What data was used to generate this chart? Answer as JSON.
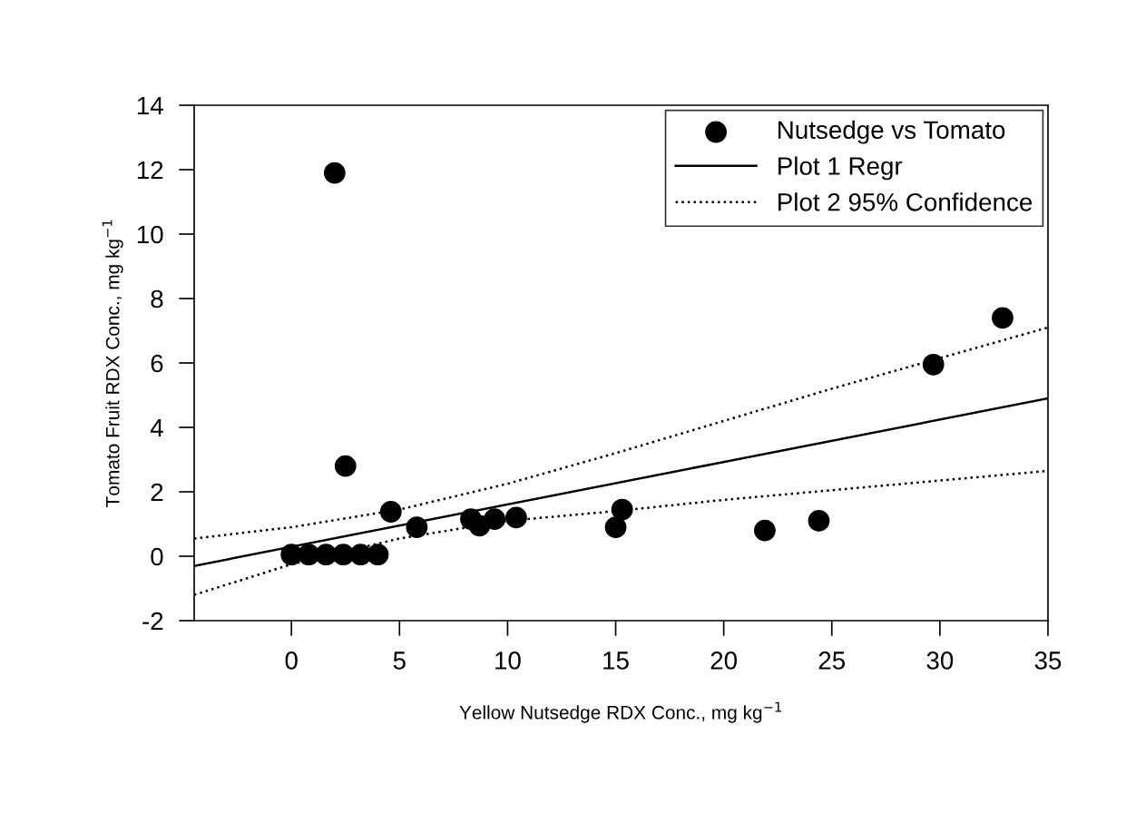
{
  "chart_data": {
    "type": "scatter",
    "xlabel": "Yellow Nutsedge RDX Conc., mg kg$^{−1}$",
    "ylabel": "Tomato Fruit RDX Conc., mg kg$^{−1}$",
    "xlim": [
      -4.5,
      35
    ],
    "xticks": [
      0,
      5,
      10,
      15,
      20,
      25,
      30,
      35
    ],
    "ylim": [
      -2,
      14
    ],
    "yticks": [
      -2,
      0,
      2,
      4,
      6,
      8,
      10,
      12,
      14
    ],
    "grid": false,
    "legend": "top right",
    "series": [
      {
        "name": "Nutsedge vs Tomato",
        "color": "#000000",
        "marker": "circle",
        "x": [
          0,
          0.8,
          1.6,
          2.4,
          3.2,
          4.0,
          2.0,
          2.5,
          4.6,
          5.8,
          8.3,
          8.7,
          9.4,
          10.4,
          15.0,
          15.3,
          21.9,
          24.4,
          29.7,
          32.9
        ],
        "values": [
          0.05,
          0.05,
          0.05,
          0.05,
          0.05,
          0.05,
          11.9,
          2.8,
          1.38,
          0.9,
          1.15,
          0.95,
          1.15,
          1.2,
          0.9,
          1.45,
          0.8,
          1.1,
          5.95,
          7.4
        ]
      },
      {
        "name": "Plot 1 Regr",
        "type": "line",
        "color": "#000000",
        "line_style": "solid",
        "marker": "none",
        "x": [
          -4.5,
          35
        ],
        "values": [
          -0.3,
          4.9
        ]
      },
      {
        "name": "Plot 2 95% Confidence",
        "type": "line",
        "color": "#000000",
        "line_style": "dotted",
        "marker": "none",
        "x": [
          -4.5,
          0,
          5,
          10,
          15,
          20,
          25,
          30,
          35
        ],
        "values": [
          0.55,
          0.9,
          1.45,
          2.25,
          3.2,
          4.2,
          5.2,
          6.15,
          7.1
        ]
      },
      {
        "type": "line",
        "color": "#000000",
        "line_style": "dotted",
        "marker": "none",
        "x": [
          -4.5,
          0,
          5,
          10,
          15,
          20,
          25,
          30,
          35
        ],
        "values": [
          -1.2,
          -0.25,
          0.55,
          1.1,
          1.4,
          1.75,
          2.05,
          2.35,
          2.65
        ]
      }
    ]
  }
}
